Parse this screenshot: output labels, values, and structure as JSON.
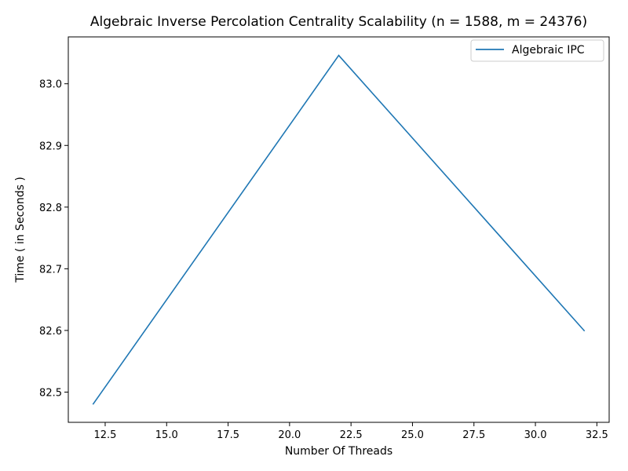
{
  "chart_data": {
    "type": "line",
    "title": "Algebraic Inverse Percolation Centrality Scalability (n = 1588, m = 24376)",
    "xlabel": "Number Of Threads",
    "ylabel": "Time ( in Seconds )",
    "xlim": [
      11.0,
      33.0
    ],
    "ylim": [
      82.451,
      83.076
    ],
    "xticks": [
      12.5,
      15.0,
      17.5,
      20.0,
      22.5,
      25.0,
      27.5,
      30.0,
      32.5
    ],
    "xtick_labels": [
      "12.5",
      "15.0",
      "17.5",
      "20.0",
      "22.5",
      "25.0",
      "27.5",
      "30.0",
      "32.5"
    ],
    "yticks": [
      82.5,
      82.6,
      82.7,
      82.8,
      82.9,
      83.0
    ],
    "ytick_labels": [
      "82.5",
      "82.6",
      "82.7",
      "82.8",
      "82.9",
      "83.0"
    ],
    "grid": false,
    "legend_position": "top-right",
    "series": [
      {
        "name": "Algebraic IPC",
        "color": "#1f77b4",
        "x": [
          12,
          22,
          32
        ],
        "y": [
          82.48,
          83.046,
          82.599
        ]
      }
    ]
  }
}
